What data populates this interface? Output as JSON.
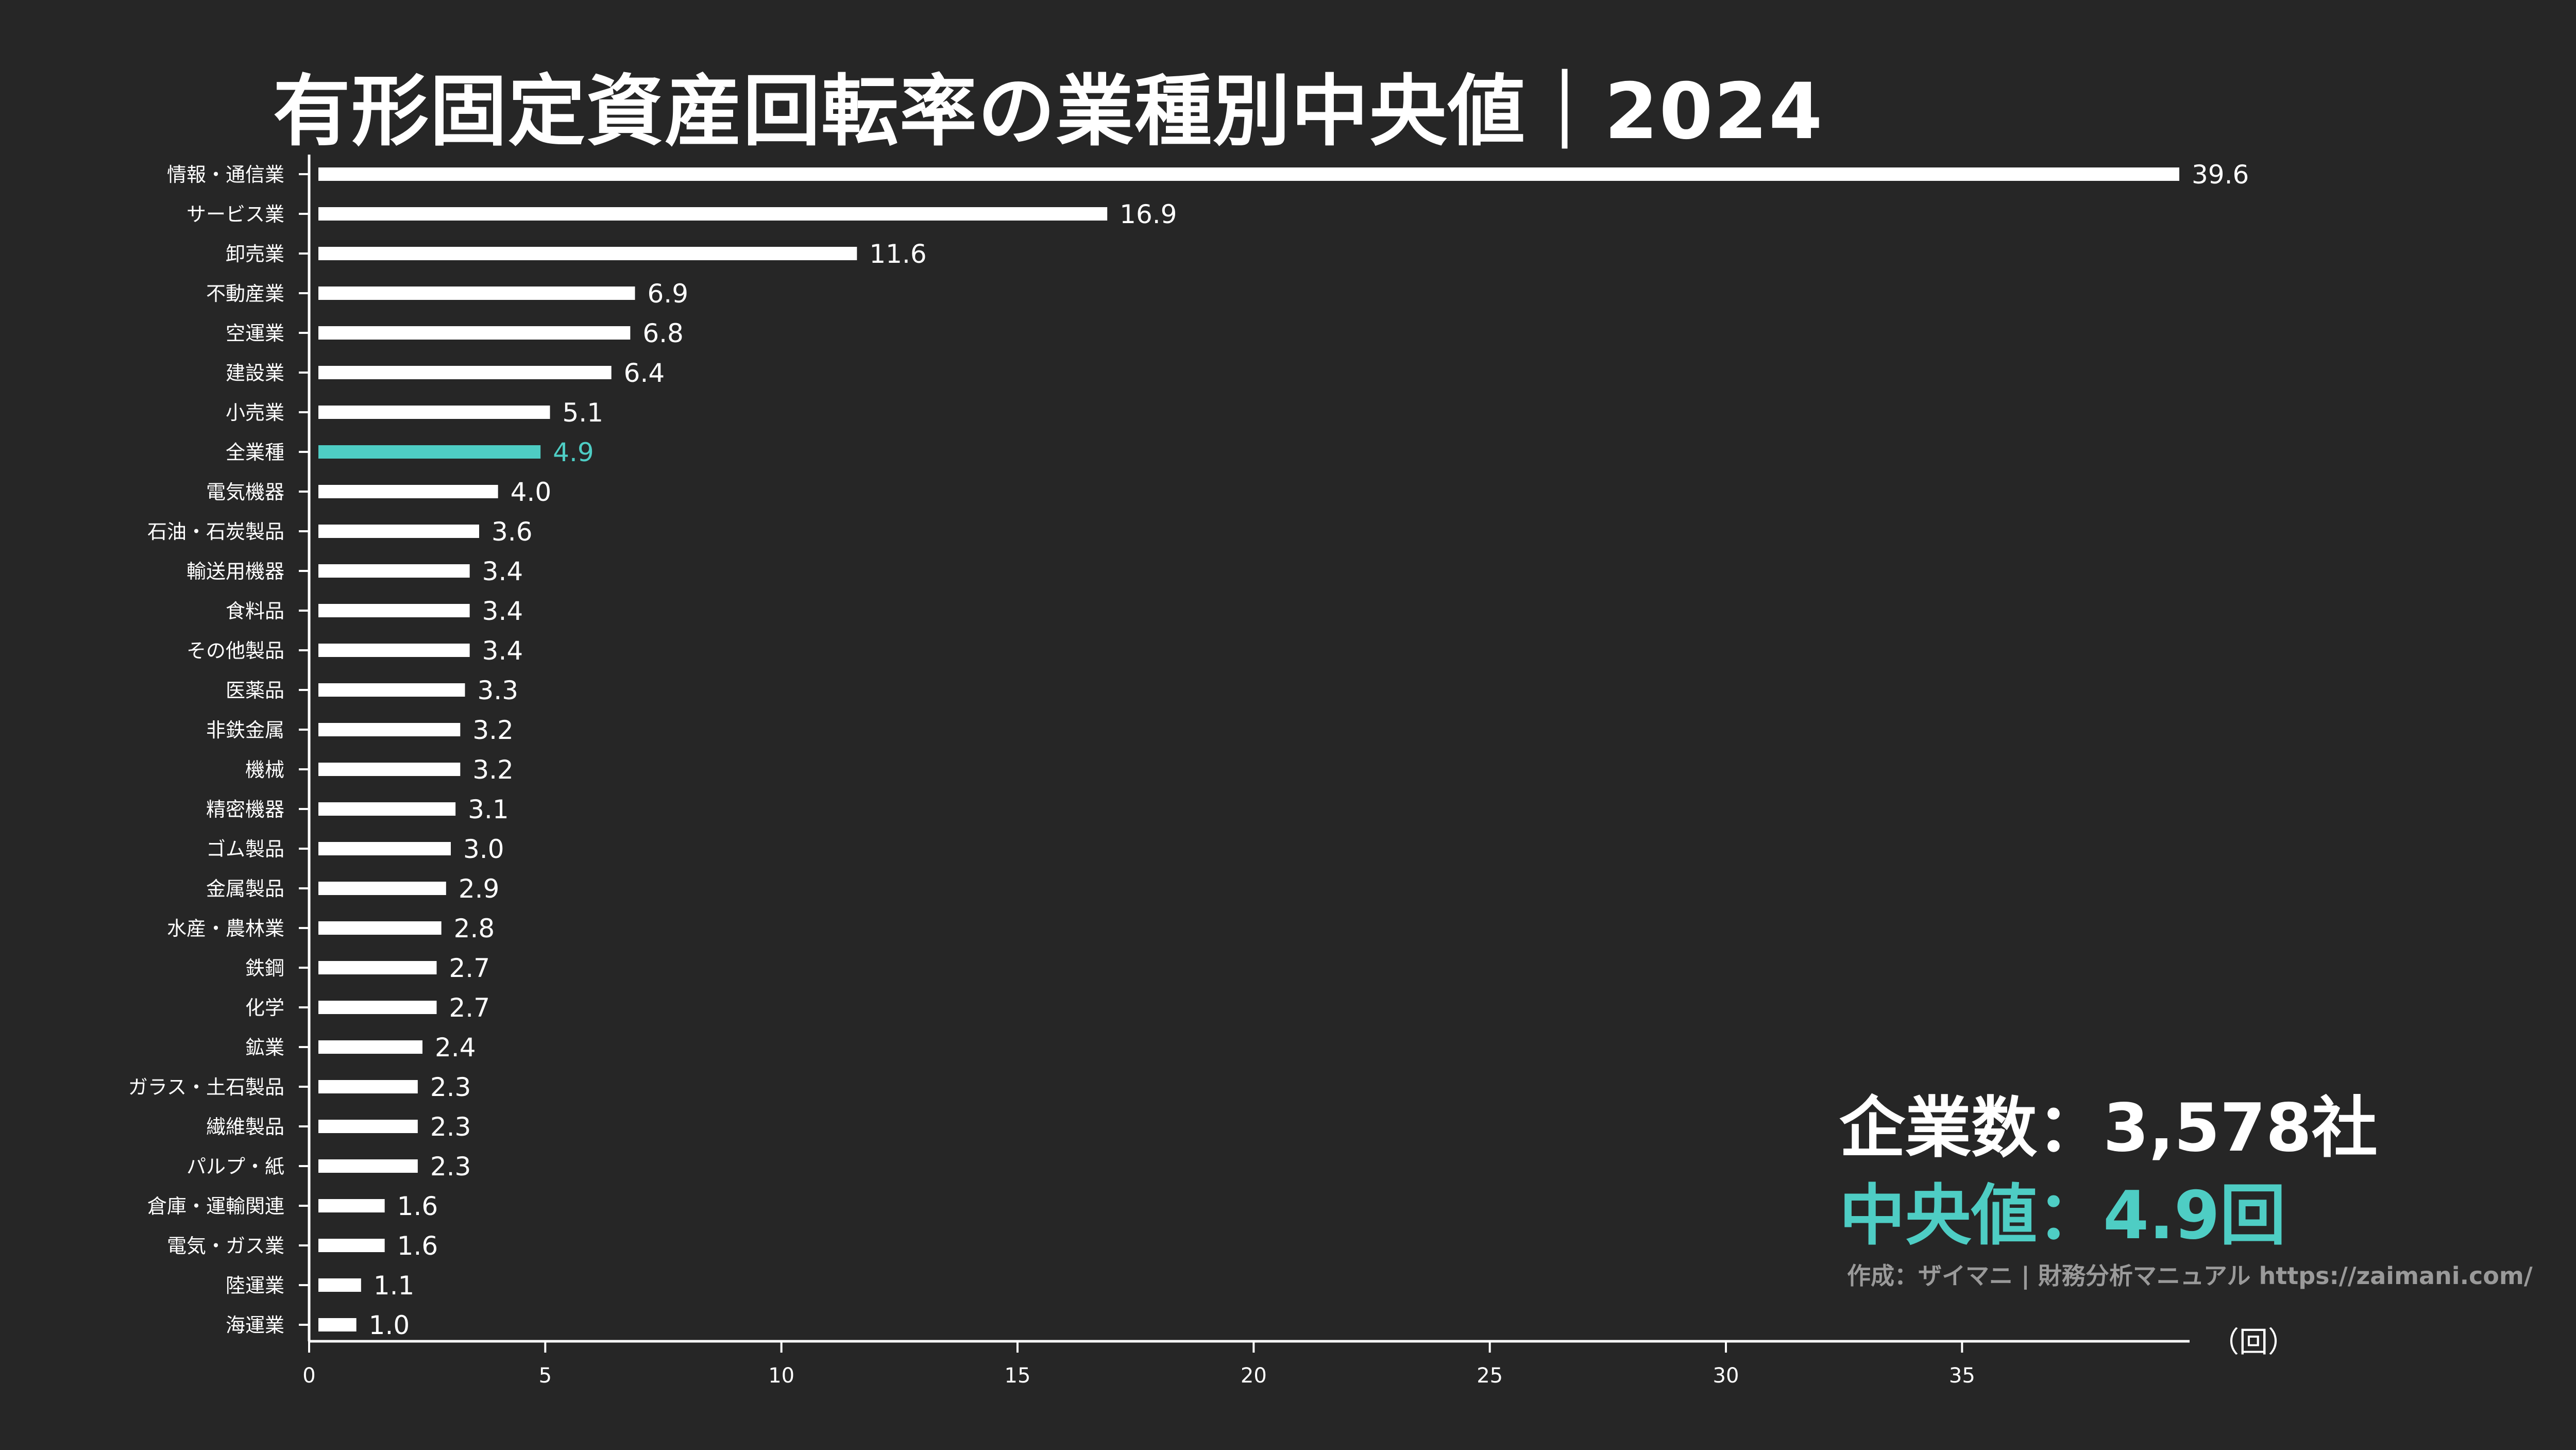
{
  "title": "有形固定資産回転率の業種別中央値｜2024",
  "stats": {
    "companies": "企業数：3,578社",
    "median": "中央値：4.9回"
  },
  "credit": "作成：ザイマニ | 財務分析マニュアル https://zaimani.com/",
  "colors": {
    "background": "#262626",
    "bar": "#ffffff",
    "highlight": "#4ecdc4",
    "text": "#ffffff",
    "muted": "#9a9a9a"
  },
  "chart_data": {
    "type": "bar",
    "orientation": "horizontal",
    "unit_label": "（回）",
    "xlim": [
      0,
      39.6
    ],
    "x_ticks": [
      0,
      5,
      10,
      15,
      20,
      25,
      30,
      35
    ],
    "highlight_category": "全業種",
    "categories": [
      "情報・通信業",
      "サービス業",
      "卸売業",
      "不動産業",
      "空運業",
      "建設業",
      "小売業",
      "全業種",
      "電気機器",
      "石油・石炭製品",
      "輸送用機器",
      "食料品",
      "その他製品",
      "医薬品",
      "非鉄金属",
      "機械",
      "精密機器",
      "ゴム製品",
      "金属製品",
      "水産・農林業",
      "鉄鋼",
      "化学",
      "鉱業",
      "ガラス・土石製品",
      "繊維製品",
      "パルプ・紙",
      "倉庫・運輸関連",
      "電気・ガス業",
      "陸運業",
      "海運業"
    ],
    "values": [
      39.6,
      16.9,
      11.6,
      6.9,
      6.8,
      6.4,
      5.1,
      4.9,
      4.0,
      3.6,
      3.4,
      3.4,
      3.4,
      3.3,
      3.2,
      3.2,
      3.1,
      3.0,
      2.9,
      2.8,
      2.7,
      2.7,
      2.4,
      2.3,
      2.3,
      2.3,
      1.6,
      1.6,
      1.1,
      1.0
    ],
    "value_labels": [
      "39.6",
      "16.9",
      "11.6",
      "6.9",
      "6.8",
      "6.4",
      "5.1",
      "4.9",
      "4.0",
      "3.6",
      "3.4",
      "3.4",
      "3.4",
      "3.3",
      "3.2",
      "3.2",
      "3.1",
      "3.0",
      "2.9",
      "2.8",
      "2.7",
      "2.7",
      "2.4",
      "2.3",
      "2.3",
      "2.3",
      "1.6",
      "1.6",
      "1.1",
      "1.0"
    ]
  }
}
